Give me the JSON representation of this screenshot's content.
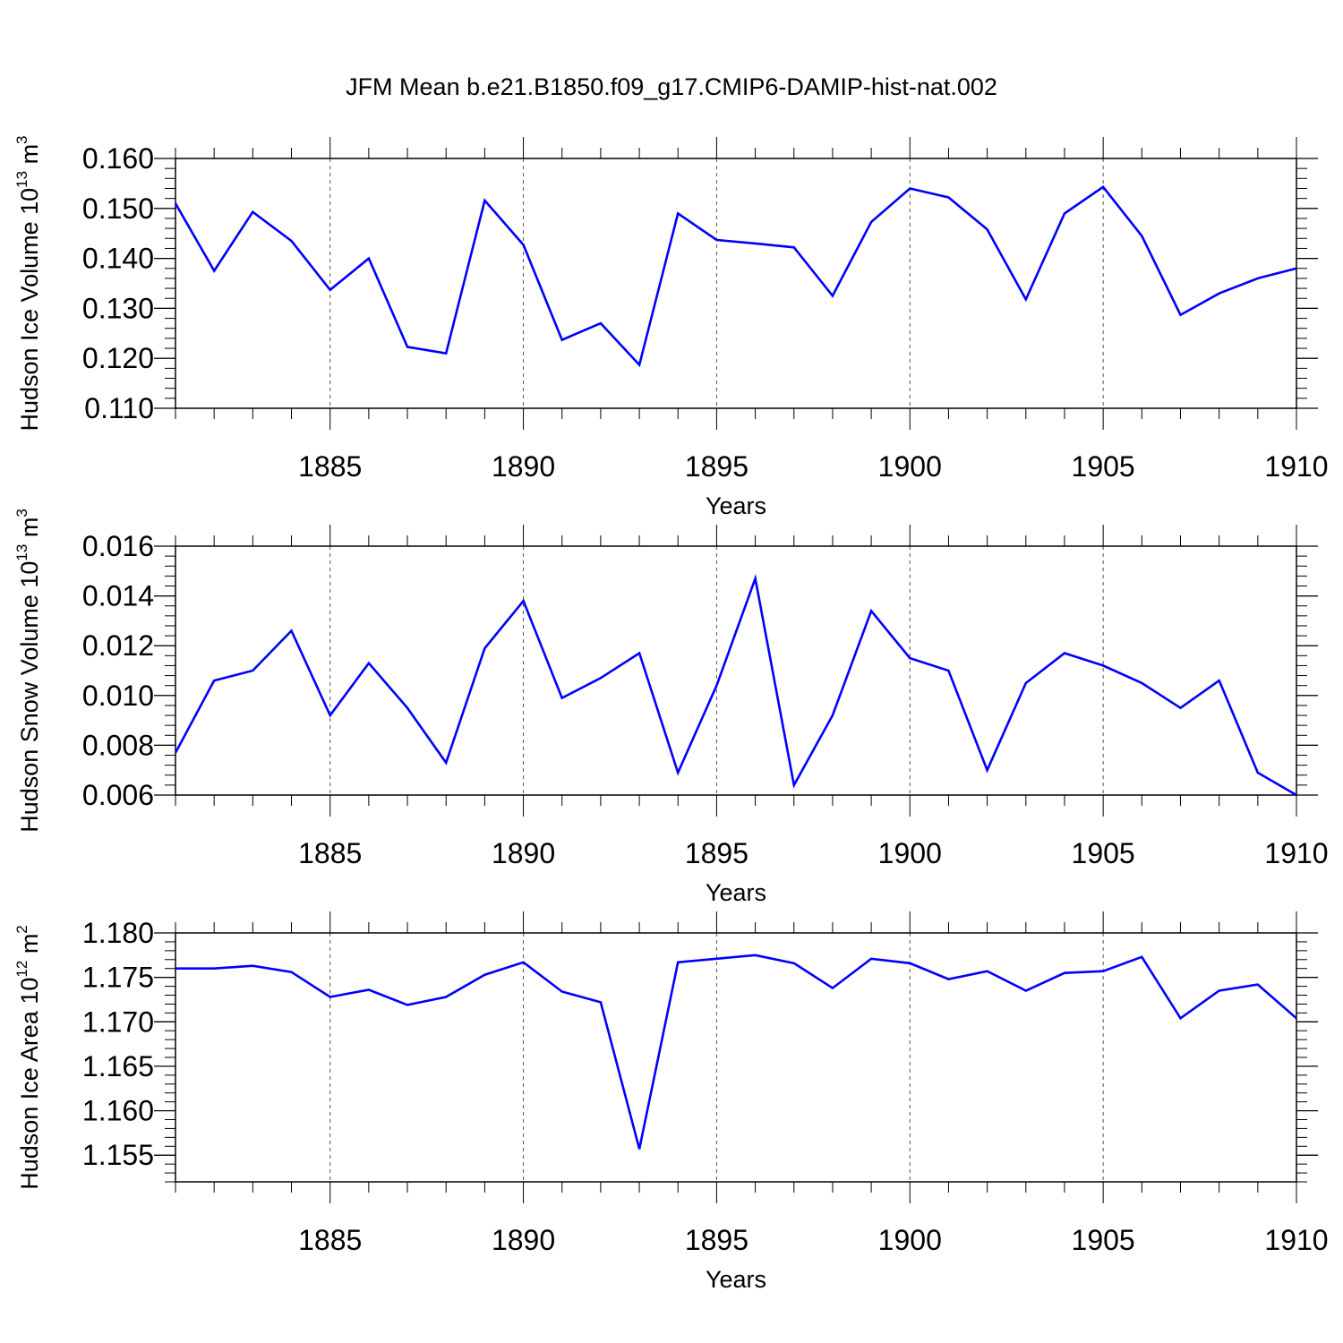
{
  "title": "JFM Mean b.e21.B1850.f09_g17.CMIP6-DAMIP-hist-nat.002",
  "chart_data": [
    {
      "type": "line",
      "title": "",
      "xlabel": "Years",
      "ylabel": {
        "main": "Hudson Ice Volume 10",
        "exp": "13",
        "unit": "m",
        "unit_exp": "3"
      },
      "x": [
        1881,
        1882,
        1883,
        1884,
        1885,
        1886,
        1887,
        1888,
        1889,
        1890,
        1891,
        1892,
        1893,
        1894,
        1895,
        1896,
        1897,
        1898,
        1899,
        1900,
        1901,
        1902,
        1903,
        1904,
        1905,
        1906,
        1907,
        1908,
        1909,
        1910
      ],
      "xlim": [
        1881,
        1910
      ],
      "xticks": [
        1885,
        1890,
        1895,
        1900,
        1905,
        1910
      ],
      "ylim": [
        0.11,
        0.16
      ],
      "yticks": [
        "0.110",
        "0.120",
        "0.130",
        "0.140",
        "0.150",
        "0.160"
      ],
      "series": [
        {
          "color": "#0000ff",
          "values": [
            0.151,
            0.1375,
            0.1493,
            0.1435,
            0.1337,
            0.14,
            0.1223,
            0.121,
            0.1516,
            0.1427,
            0.1237,
            0.127,
            0.1187,
            0.149,
            0.1437,
            0.143,
            0.1422,
            0.1325,
            0.1473,
            0.154,
            0.1522,
            0.1458,
            0.1318,
            0.149,
            0.1543,
            0.1445,
            0.1287,
            0.133,
            0.136,
            0.138
          ]
        }
      ],
      "grid": "vertical dashed at major x ticks"
    },
    {
      "type": "line",
      "title": "",
      "xlabel": "Years",
      "ylabel": {
        "main": "Hudson Snow Volume 10",
        "exp": "13",
        "unit": "m",
        "unit_exp": "3"
      },
      "x": [
        1881,
        1882,
        1883,
        1884,
        1885,
        1886,
        1887,
        1888,
        1889,
        1890,
        1891,
        1892,
        1893,
        1894,
        1895,
        1896,
        1897,
        1898,
        1899,
        1900,
        1901,
        1902,
        1903,
        1904,
        1905,
        1906,
        1907,
        1908,
        1909,
        1910
      ],
      "xlim": [
        1881,
        1910
      ],
      "xticks": [
        1885,
        1890,
        1895,
        1900,
        1905,
        1910
      ],
      "ylim": [
        0.006,
        0.016
      ],
      "yticks": [
        "0.006",
        "0.008",
        "0.010",
        "0.012",
        "0.014",
        "0.016"
      ],
      "series": [
        {
          "color": "#0000ff",
          "values": [
            0.0077,
            0.0106,
            0.011,
            0.0126,
            0.0092,
            0.0113,
            0.0095,
            0.0073,
            0.0119,
            0.0138,
            0.0099,
            0.0107,
            0.0117,
            0.0069,
            0.0104,
            0.0147,
            0.0064,
            0.0092,
            0.0134,
            0.0115,
            0.011,
            0.007,
            0.0105,
            0.0117,
            0.0112,
            0.0105,
            0.0095,
            0.0106,
            0.0069,
            0.006
          ]
        }
      ],
      "grid": "vertical dashed at major x ticks"
    },
    {
      "type": "line",
      "title": "",
      "xlabel": "Years",
      "ylabel": {
        "main": "Hudson Ice Area 10",
        "exp": "12",
        "unit": "m",
        "unit_exp": "2"
      },
      "x": [
        1881,
        1882,
        1883,
        1884,
        1885,
        1886,
        1887,
        1888,
        1889,
        1890,
        1891,
        1892,
        1893,
        1894,
        1895,
        1896,
        1897,
        1898,
        1899,
        1900,
        1901,
        1902,
        1903,
        1904,
        1905,
        1906,
        1907,
        1908,
        1909,
        1910
      ],
      "xlim": [
        1881,
        1910
      ],
      "xticks": [
        1885,
        1890,
        1895,
        1900,
        1905,
        1910
      ],
      "ylim": [
        1.152,
        1.18
      ],
      "yticks": [
        "1.155",
        "1.160",
        "1.165",
        "1.170",
        "1.175",
        "1.180"
      ],
      "series": [
        {
          "color": "#0000ff",
          "values": [
            1.176,
            1.176,
            1.1763,
            1.1756,
            1.1728,
            1.1736,
            1.1719,
            1.1728,
            1.1753,
            1.1767,
            1.1734,
            1.1722,
            1.1557,
            1.1767,
            1.1771,
            1.1775,
            1.1766,
            1.1738,
            1.1771,
            1.1766,
            1.1748,
            1.1757,
            1.1735,
            1.1755,
            1.1757,
            1.1773,
            1.1704,
            1.1735,
            1.1742,
            1.1704
          ]
        }
      ],
      "grid": "vertical dashed at major x ticks"
    }
  ]
}
